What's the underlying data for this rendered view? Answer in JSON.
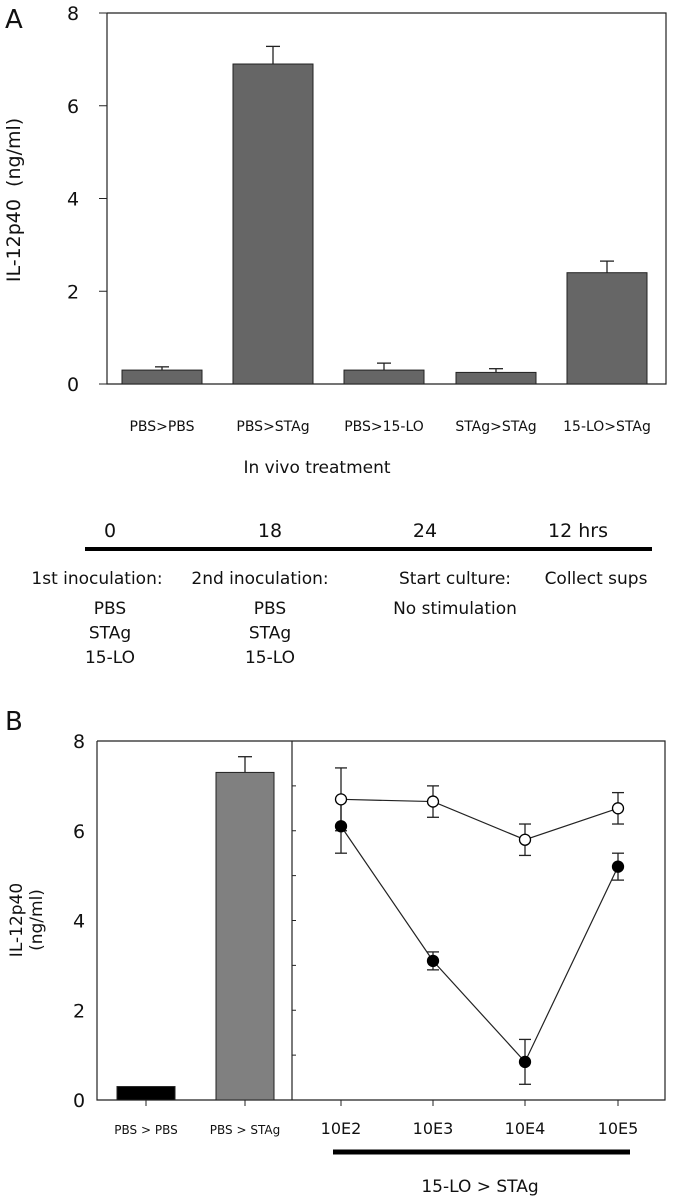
{
  "chart_data": [
    {
      "panel": "A",
      "type": "bar",
      "ylabel": "IL-12p40  (ng/ml)",
      "xlabel": "In vivo treatment",
      "ylim": [
        0,
        8
      ],
      "yticks": [
        "0",
        "2",
        "4",
        "6",
        "8"
      ],
      "categories": [
        "PBS>PBS",
        "PBS>STAg",
        "PBS>15-LO",
        "STAg>STAg",
        "15-LO>STAg"
      ],
      "values": [
        0.3,
        6.9,
        0.3,
        0.25,
        2.4
      ],
      "error_upper": [
        0.37,
        7.28,
        0.45,
        0.33,
        2.65
      ],
      "bar_color": "#666666"
    },
    {
      "panel": "B",
      "type": "bar+line",
      "ylabel_line1": "IL-12p40",
      "ylabel_line2": "(ng/ml)",
      "ylim": [
        0,
        8
      ],
      "yticks": [
        "0",
        "2",
        "4",
        "6",
        "8"
      ],
      "bars": {
        "categories": [
          "PBS > PBS",
          "PBS > STAg"
        ],
        "values": [
          0.3,
          7.3
        ],
        "error_upper": [
          null,
          7.65
        ],
        "colors": [
          "#000000",
          "#808080"
        ]
      },
      "lines": {
        "x": [
          "10E2",
          "10E3",
          "10E4",
          "10E5"
        ],
        "group_label": "15-LO > STAg",
        "series": [
          {
            "marker": "open-circle",
            "values": [
              6.7,
              6.65,
              5.8,
              6.5
            ],
            "error": [
              0.7,
              0.35,
              0.35,
              0.35
            ]
          },
          {
            "marker": "filled-circle",
            "values": [
              6.1,
              3.1,
              0.85,
              5.2
            ],
            "error": [
              0.6,
              0.2,
              0.5,
              0.3
            ]
          }
        ]
      }
    }
  ],
  "labels": {
    "panel_a": "A",
    "panel_b": "B"
  },
  "timeline": {
    "times": [
      "0",
      "18",
      "24",
      "12 hrs"
    ],
    "steps": [
      {
        "title": "1st inoculation:",
        "items": [
          "PBS",
          "STAg",
          "15-LO"
        ]
      },
      {
        "title": "2nd inoculation:",
        "items": [
          "PBS",
          "STAg",
          "15-LO"
        ]
      },
      {
        "title": "Start culture:",
        "items": [
          "No stimulation"
        ]
      },
      {
        "title": "Collect sups",
        "items": []
      }
    ]
  }
}
